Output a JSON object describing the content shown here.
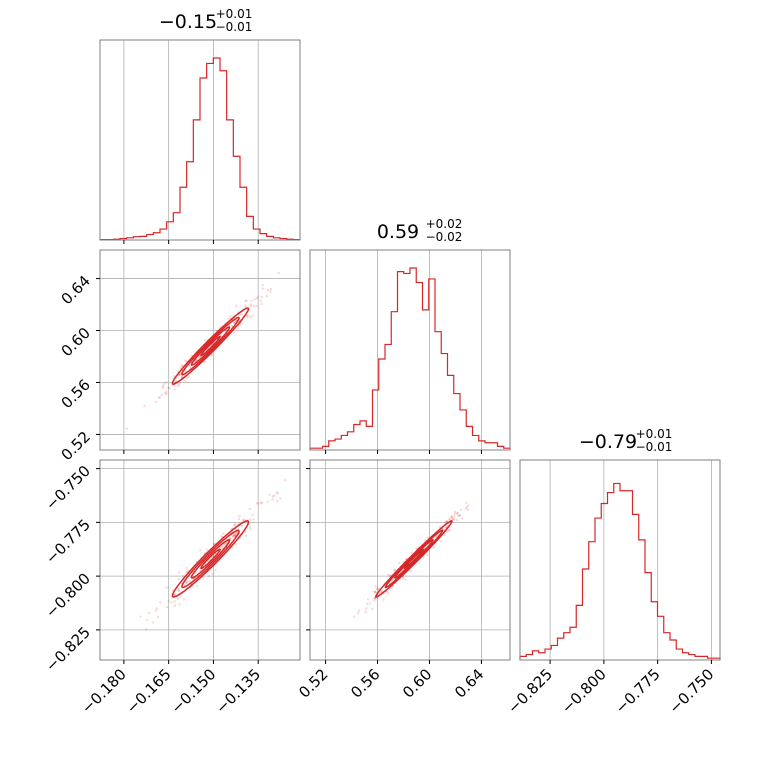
{
  "colors": {
    "accent": "#d62728",
    "grid": "#b0b0b0",
    "frame": "#808080"
  },
  "chart_data": {
    "type": "corner",
    "parameters": [
      {
        "title": {
          "main": "−0.15",
          "plus": "+0.01",
          "minus": "−0.01"
        },
        "range": [
          -0.188,
          -0.121
        ],
        "ticks": [
          -0.18,
          -0.165,
          -0.15,
          -0.135
        ],
        "tick_labels": [
          "−0.180",
          "−0.165",
          "−0.150",
          "−0.135"
        ],
        "median": -0.151,
        "hist": [
          0.002,
          0.002,
          0.004,
          0.008,
          0.012,
          0.018,
          0.02,
          0.03,
          0.04,
          0.06,
          0.1,
          0.15,
          0.29,
          0.43,
          0.66,
          0.89,
          0.97,
          1.0,
          0.93,
          0.66,
          0.46,
          0.29,
          0.13,
          0.06,
          0.035,
          0.02,
          0.012,
          0.008,
          0.004,
          0.002
        ]
      },
      {
        "title": {
          "main": "0.59",
          "plus": "+0.02",
          "minus": "−0.02"
        },
        "range": [
          0.508,
          0.662
        ],
        "ticks": [
          0.52,
          0.56,
          0.6,
          0.64
        ],
        "tick_labels": [
          "0.52",
          "0.56",
          "0.60",
          "0.64"
        ],
        "median": 0.588,
        "hist": [
          0.01,
          0.01,
          0.02,
          0.05,
          0.06,
          0.08,
          0.1,
          0.14,
          0.16,
          0.13,
          0.33,
          0.5,
          0.58,
          0.76,
          0.98,
          0.97,
          1.0,
          0.92,
          0.77,
          0.94,
          0.65,
          0.53,
          0.41,
          0.31,
          0.22,
          0.13,
          0.08,
          0.05,
          0.04,
          0.04,
          0.02,
          0.01
        ]
      },
      {
        "title": {
          "main": "−0.79",
          "plus": "+0.01",
          "minus": "−0.01"
        },
        "range": [
          -0.839,
          -0.746
        ],
        "ticks": [
          -0.825,
          -0.8,
          -0.775,
          -0.75
        ],
        "tick_labels": [
          "−0.825",
          "−0.800",
          "−0.775",
          "−0.750"
        ],
        "median": -0.792,
        "hist": [
          0.02,
          0.03,
          0.05,
          0.04,
          0.06,
          0.08,
          0.12,
          0.15,
          0.18,
          0.3,
          0.5,
          0.65,
          0.78,
          0.86,
          0.92,
          0.97,
          0.93,
          0.93,
          0.8,
          0.66,
          0.48,
          0.32,
          0.24,
          0.15,
          0.11,
          0.06,
          0.04,
          0.03,
          0.02,
          0.02,
          0.01,
          0.01
        ]
      }
    ],
    "correlations": {
      "0-1": 0.98,
      "0-2": 0.97,
      "1-2": 0.99
    },
    "grid": true
  }
}
